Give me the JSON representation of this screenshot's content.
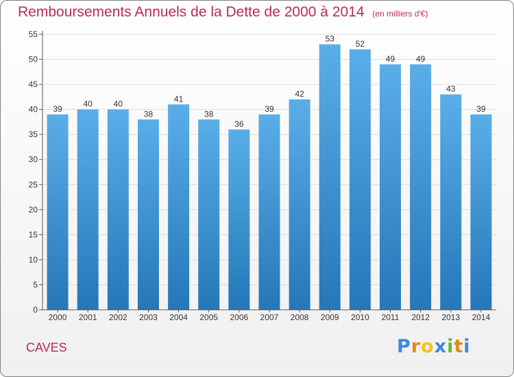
{
  "header": {
    "title": "Remboursements Annuels de la Dette de 2000 à 2014",
    "unit": "(en milliers d'€)"
  },
  "footer": {
    "commune": "CAVES",
    "brand": "Proxiti"
  },
  "colors": {
    "title": "#c02950",
    "bar_top": "#5aaee8",
    "bar_bottom": "#2577b8",
    "grid": "#dcdcdc",
    "brand_letters": [
      "#3b8ad9",
      "#e8861a",
      "#f5c21b",
      "#3b8ad9",
      "#66b82e",
      "#e8861a",
      "#3b8ad9"
    ]
  },
  "chart_data": {
    "type": "bar",
    "categories": [
      "2000",
      "2001",
      "2002",
      "2003",
      "2004",
      "2005",
      "2006",
      "2007",
      "2008",
      "2009",
      "2010",
      "2011",
      "2012",
      "2013",
      "2014"
    ],
    "values": [
      39,
      40,
      40,
      38,
      41,
      38,
      36,
      39,
      42,
      53,
      52,
      49,
      49,
      43,
      39
    ],
    "ylim": [
      0,
      55
    ],
    "yticks": [
      0,
      5,
      10,
      15,
      20,
      25,
      30,
      35,
      40,
      45,
      50,
      55
    ],
    "grid": true,
    "data_labels": true
  }
}
